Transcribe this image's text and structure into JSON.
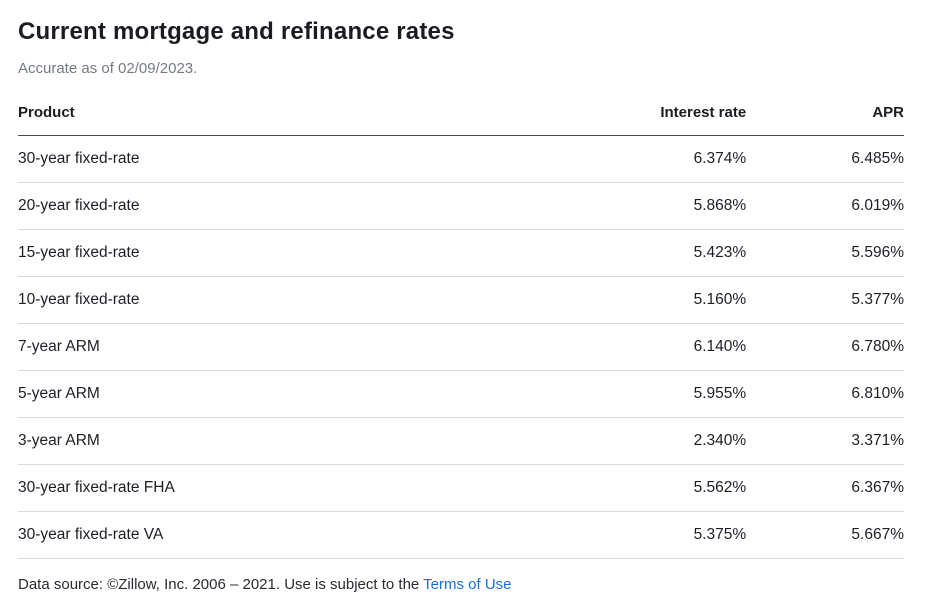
{
  "page": {
    "title": "Current mortgage and refinance rates",
    "subtitle": "Accurate as of 02/09/2023."
  },
  "table": {
    "columns": [
      "Product",
      "Interest rate",
      "APR"
    ],
    "rows": [
      {
        "product": "30-year fixed-rate",
        "interest_rate": "6.374%",
        "apr": "6.485%"
      },
      {
        "product": "20-year fixed-rate",
        "interest_rate": "5.868%",
        "apr": "6.019%"
      },
      {
        "product": "15-year fixed-rate",
        "interest_rate": "5.423%",
        "apr": "5.596%"
      },
      {
        "product": "10-year fixed-rate",
        "interest_rate": "5.160%",
        "apr": "5.377%"
      },
      {
        "product": "7-year ARM",
        "interest_rate": "6.140%",
        "apr": "6.780%"
      },
      {
        "product": "5-year ARM",
        "interest_rate": "5.955%",
        "apr": "6.810%"
      },
      {
        "product": "3-year ARM",
        "interest_rate": "2.340%",
        "apr": "3.371%"
      },
      {
        "product": "30-year fixed-rate FHA",
        "interest_rate": "5.562%",
        "apr": "6.367%"
      },
      {
        "product": "30-year fixed-rate VA",
        "interest_rate": "5.375%",
        "apr": "5.667%"
      }
    ]
  },
  "footer": {
    "text_before_link": "Data source: ©Zillow, Inc. 2006 – 2021. Use is subject to the ",
    "link_label": "Terms of Use"
  },
  "colors": {
    "link_blue": "#1d6fd6",
    "header_border": "#4a4b52",
    "row_divider": "#d8d8dd",
    "subtitle_gray": "#757a82",
    "text_dark": "#1b1b22"
  }
}
